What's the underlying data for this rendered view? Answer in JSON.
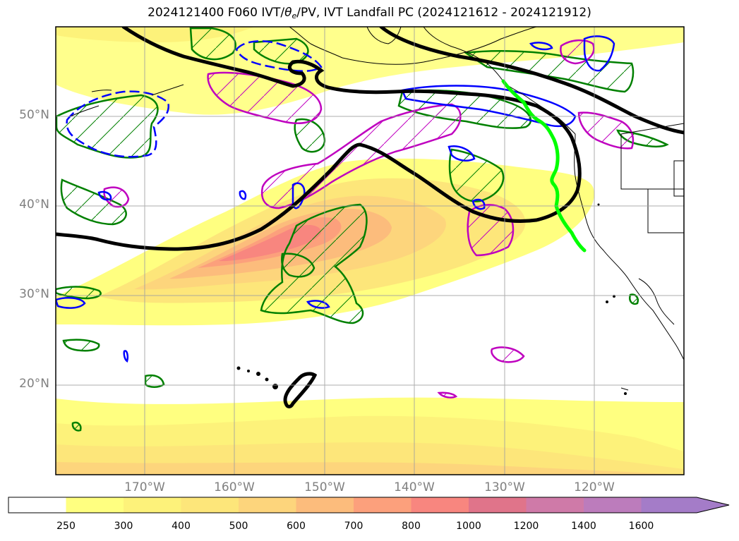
{
  "title": {
    "prefix": "2024121400 F060 IVT/",
    "theta": "θ",
    "theta_sub": "e",
    "suffix": "/PV, IVT Landfall PC (2024121612 - 2024121912)"
  },
  "axes": {
    "lat_labels": [
      "50°N",
      "40°N",
      "30°N",
      "20°N"
    ],
    "lon_labels": [
      "170°W",
      "160°W",
      "150°W",
      "140°W",
      "130°W",
      "120°W"
    ]
  },
  "colorbar": {
    "ticks": [
      "250",
      "300",
      "400",
      "500",
      "600",
      "700",
      "800",
      "1000",
      "1200",
      "1400",
      "1600"
    ],
    "colors": [
      "#ffffff",
      "#ffff80",
      "#fdf27a",
      "#fde67a",
      "#fdd57c",
      "#fcbc7c",
      "#fca07c",
      "#f8867f",
      "#e0748a",
      "#cf7aa8",
      "#bc7cbc",
      "#a47cc8"
    ]
  },
  "contour_colors": {
    "theta_e": "#000000",
    "pv_positive": "#008000",
    "pv_negative": "#0000ff",
    "ivt_anomaly": "#bf00bf",
    "landfall": "#00ff00"
  }
}
